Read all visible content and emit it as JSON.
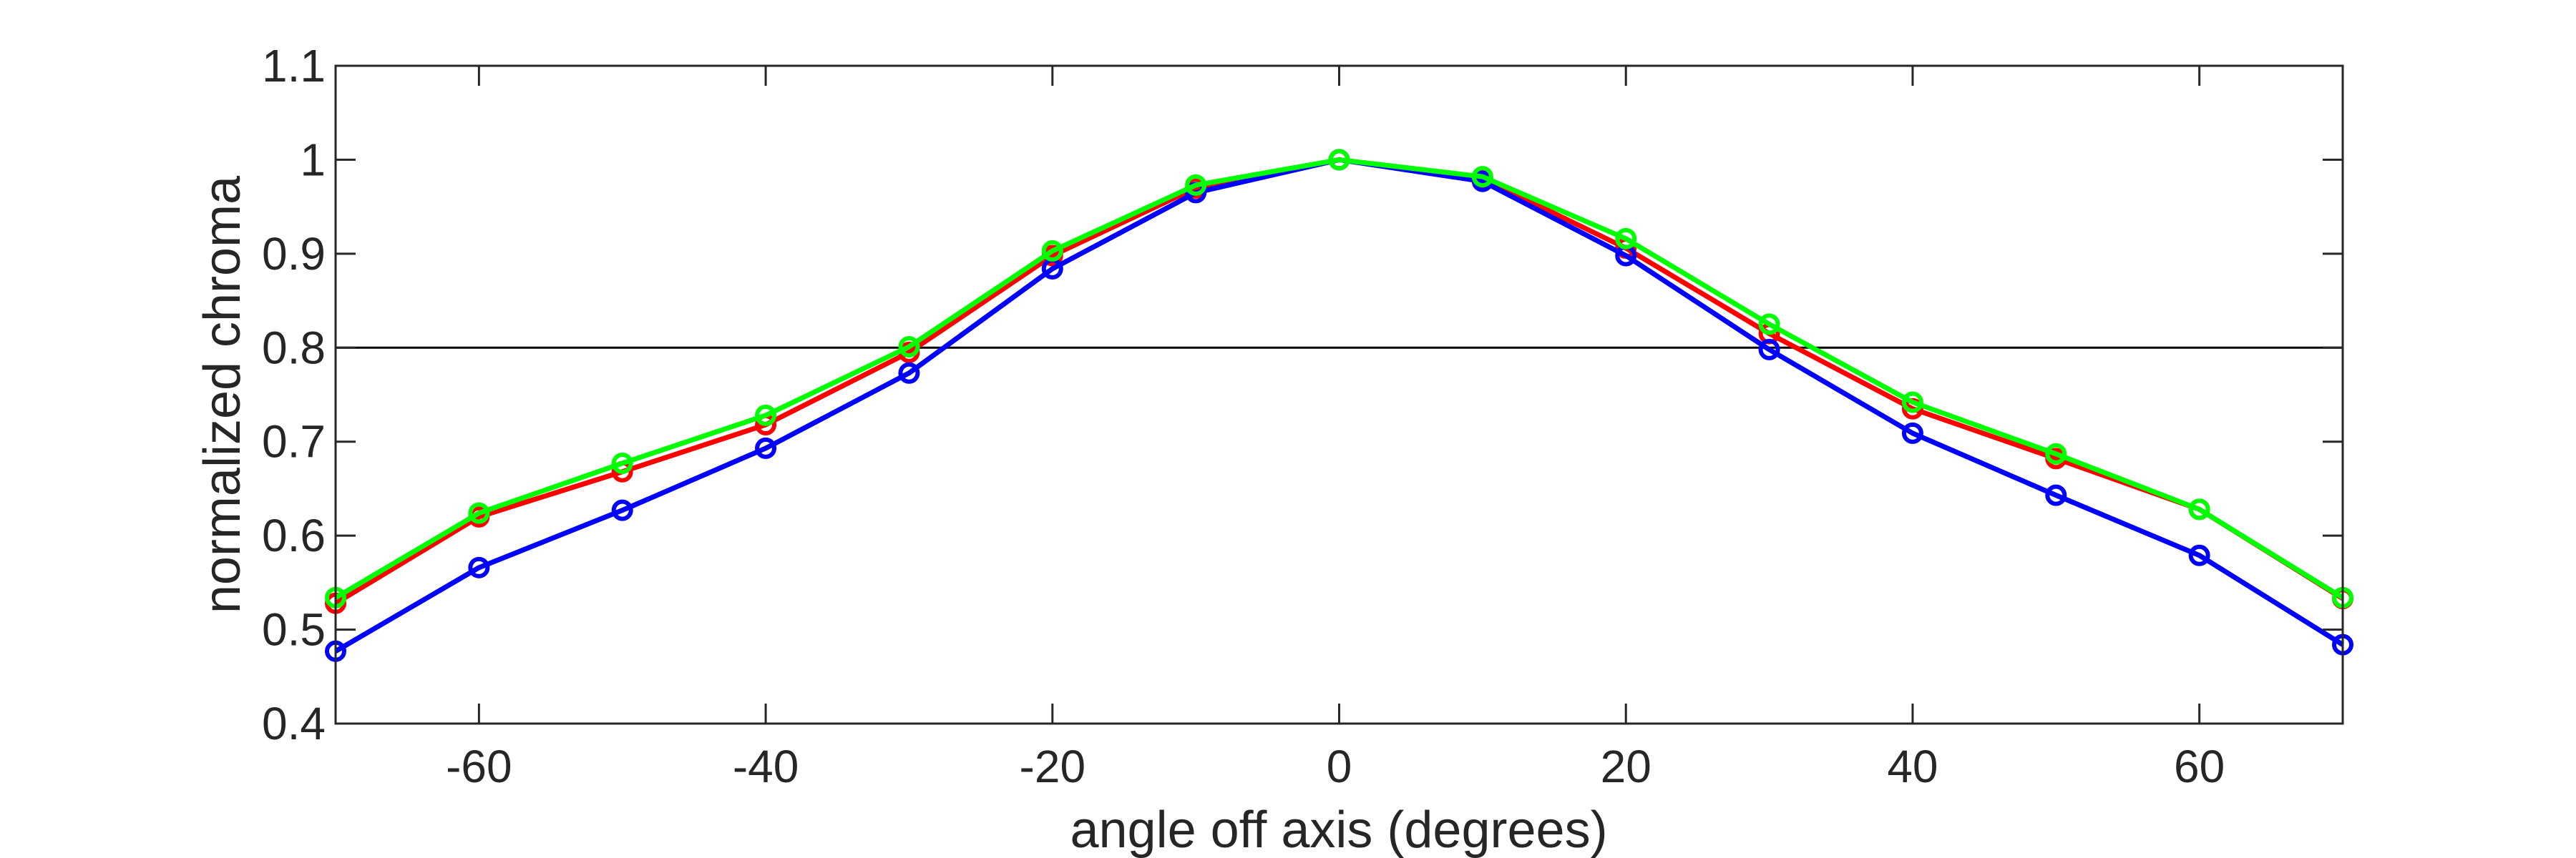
{
  "chart_data": {
    "type": "line",
    "xlabel": "angle off axis (degrees)",
    "ylabel": "normalized chroma",
    "xlim": [
      -70,
      70
    ],
    "ylim": [
      0.4,
      1.1
    ],
    "xticks": [
      -60,
      -40,
      -20,
      0,
      20,
      40,
      60
    ],
    "yticks": [
      0.4,
      0.5,
      0.6,
      0.7,
      0.8,
      0.9,
      1,
      1.1
    ],
    "xtick_labels": [
      "-60",
      "-40",
      "-20",
      "0",
      "20",
      "40",
      "60"
    ],
    "ytick_labels": [
      "0.4",
      "0.5",
      "0.6",
      "0.7",
      "0.8",
      "0.9",
      "1",
      "1.1"
    ],
    "grid": false,
    "reference_line": 0.8,
    "x": [
      -70,
      -60,
      -50,
      -40,
      -30,
      -20,
      -10,
      0,
      10,
      20,
      30,
      40,
      50,
      60,
      70
    ],
    "series": [
      {
        "color": "#ff0000",
        "values": [
          0.528,
          0.62,
          0.668,
          0.718,
          0.795,
          0.898,
          0.97,
          1.0,
          0.98,
          0.906,
          0.815,
          0.735,
          0.682,
          0.628,
          0.533
        ]
      },
      {
        "color": "#0000ff",
        "values": [
          0.477,
          0.566,
          0.627,
          0.693,
          0.773,
          0.884,
          0.965,
          1.0,
          0.977,
          0.898,
          0.798,
          0.709,
          0.643,
          0.579,
          0.484
        ]
      },
      {
        "color": "#00ff00",
        "values": [
          0.534,
          0.624,
          0.677,
          0.728,
          0.801,
          0.903,
          0.973,
          1.0,
          0.982,
          0.916,
          0.825,
          0.742,
          0.687,
          0.628,
          0.534
        ]
      }
    ]
  }
}
